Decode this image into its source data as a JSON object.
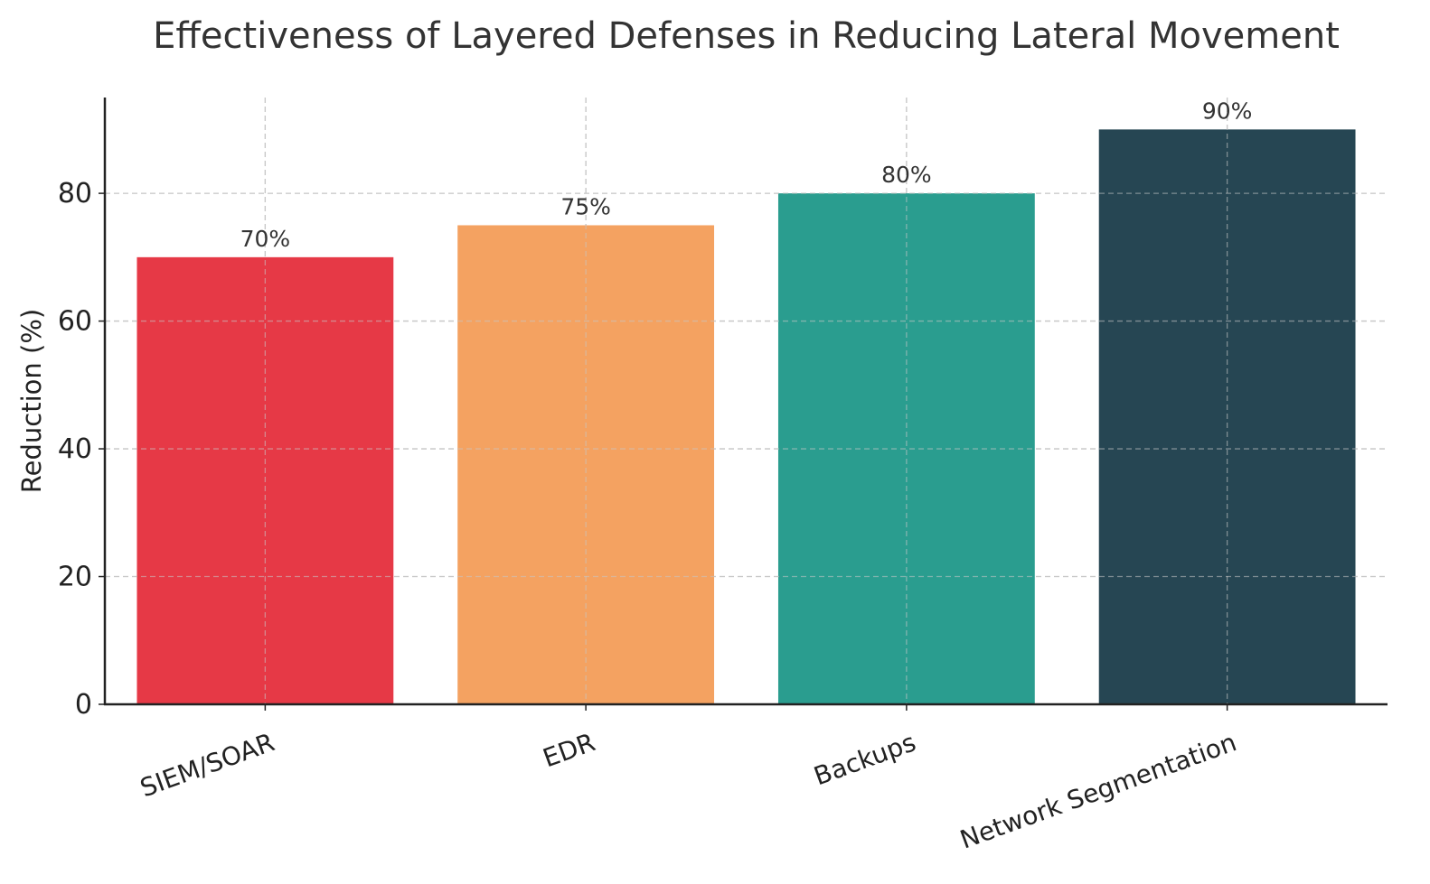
{
  "chart_data": {
    "type": "bar",
    "title": "Effectiveness of Layered Defenses in Reducing Lateral Movement",
    "xlabel": "",
    "ylabel": "Reduction (%)",
    "categories": [
      "SIEM/SOAR",
      "EDR",
      "Backups",
      "Network Segmentation"
    ],
    "values": [
      70,
      75,
      80,
      90
    ],
    "data_labels": [
      "70%",
      "75%",
      "80%",
      "90%"
    ],
    "colors": [
      "#e63946",
      "#f4a261",
      "#2a9d8f",
      "#264653"
    ],
    "ylim": [
      0,
      95
    ],
    "yticks": [
      0,
      20,
      40,
      60,
      80
    ],
    "grid": true,
    "legend": "none"
  }
}
